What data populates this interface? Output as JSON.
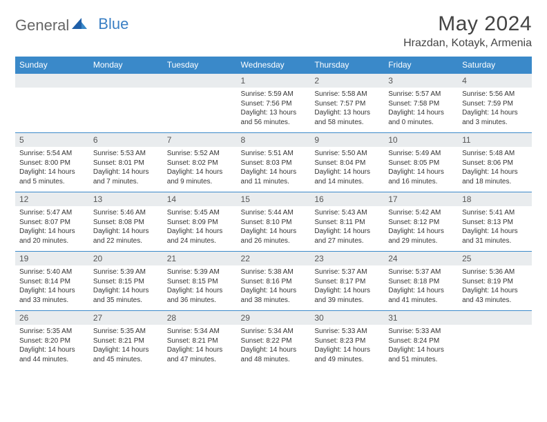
{
  "logo": {
    "text1": "General",
    "text2": "Blue"
  },
  "title": "May 2024",
  "location": "Hrazdan, Kotayk, Armenia",
  "colors": {
    "header_bg": "#3a89c9",
    "header_text": "#ffffff",
    "daynum_bg": "#e9ecee",
    "rule": "#3a89c9",
    "logo_blue": "#3a7fc4"
  },
  "day_headers": [
    "Sunday",
    "Monday",
    "Tuesday",
    "Wednesday",
    "Thursday",
    "Friday",
    "Saturday"
  ],
  "weeks": [
    [
      {
        "empty": true
      },
      {
        "empty": true
      },
      {
        "empty": true
      },
      {
        "n": "1",
        "sr": "5:59 AM",
        "ss": "7:56 PM",
        "dl": "13 hours and 56 minutes."
      },
      {
        "n": "2",
        "sr": "5:58 AM",
        "ss": "7:57 PM",
        "dl": "13 hours and 58 minutes."
      },
      {
        "n": "3",
        "sr": "5:57 AM",
        "ss": "7:58 PM",
        "dl": "14 hours and 0 minutes."
      },
      {
        "n": "4",
        "sr": "5:56 AM",
        "ss": "7:59 PM",
        "dl": "14 hours and 3 minutes."
      }
    ],
    [
      {
        "n": "5",
        "sr": "5:54 AM",
        "ss": "8:00 PM",
        "dl": "14 hours and 5 minutes."
      },
      {
        "n": "6",
        "sr": "5:53 AM",
        "ss": "8:01 PM",
        "dl": "14 hours and 7 minutes."
      },
      {
        "n": "7",
        "sr": "5:52 AM",
        "ss": "8:02 PM",
        "dl": "14 hours and 9 minutes."
      },
      {
        "n": "8",
        "sr": "5:51 AM",
        "ss": "8:03 PM",
        "dl": "14 hours and 11 minutes."
      },
      {
        "n": "9",
        "sr": "5:50 AM",
        "ss": "8:04 PM",
        "dl": "14 hours and 14 minutes."
      },
      {
        "n": "10",
        "sr": "5:49 AM",
        "ss": "8:05 PM",
        "dl": "14 hours and 16 minutes."
      },
      {
        "n": "11",
        "sr": "5:48 AM",
        "ss": "8:06 PM",
        "dl": "14 hours and 18 minutes."
      }
    ],
    [
      {
        "n": "12",
        "sr": "5:47 AM",
        "ss": "8:07 PM",
        "dl": "14 hours and 20 minutes."
      },
      {
        "n": "13",
        "sr": "5:46 AM",
        "ss": "8:08 PM",
        "dl": "14 hours and 22 minutes."
      },
      {
        "n": "14",
        "sr": "5:45 AM",
        "ss": "8:09 PM",
        "dl": "14 hours and 24 minutes."
      },
      {
        "n": "15",
        "sr": "5:44 AM",
        "ss": "8:10 PM",
        "dl": "14 hours and 26 minutes."
      },
      {
        "n": "16",
        "sr": "5:43 AM",
        "ss": "8:11 PM",
        "dl": "14 hours and 27 minutes."
      },
      {
        "n": "17",
        "sr": "5:42 AM",
        "ss": "8:12 PM",
        "dl": "14 hours and 29 minutes."
      },
      {
        "n": "18",
        "sr": "5:41 AM",
        "ss": "8:13 PM",
        "dl": "14 hours and 31 minutes."
      }
    ],
    [
      {
        "n": "19",
        "sr": "5:40 AM",
        "ss": "8:14 PM",
        "dl": "14 hours and 33 minutes."
      },
      {
        "n": "20",
        "sr": "5:39 AM",
        "ss": "8:15 PM",
        "dl": "14 hours and 35 minutes."
      },
      {
        "n": "21",
        "sr": "5:39 AM",
        "ss": "8:15 PM",
        "dl": "14 hours and 36 minutes."
      },
      {
        "n": "22",
        "sr": "5:38 AM",
        "ss": "8:16 PM",
        "dl": "14 hours and 38 minutes."
      },
      {
        "n": "23",
        "sr": "5:37 AM",
        "ss": "8:17 PM",
        "dl": "14 hours and 39 minutes."
      },
      {
        "n": "24",
        "sr": "5:37 AM",
        "ss": "8:18 PM",
        "dl": "14 hours and 41 minutes."
      },
      {
        "n": "25",
        "sr": "5:36 AM",
        "ss": "8:19 PM",
        "dl": "14 hours and 43 minutes."
      }
    ],
    [
      {
        "n": "26",
        "sr": "5:35 AM",
        "ss": "8:20 PM",
        "dl": "14 hours and 44 minutes."
      },
      {
        "n": "27",
        "sr": "5:35 AM",
        "ss": "8:21 PM",
        "dl": "14 hours and 45 minutes."
      },
      {
        "n": "28",
        "sr": "5:34 AM",
        "ss": "8:21 PM",
        "dl": "14 hours and 47 minutes."
      },
      {
        "n": "29",
        "sr": "5:34 AM",
        "ss": "8:22 PM",
        "dl": "14 hours and 48 minutes."
      },
      {
        "n": "30",
        "sr": "5:33 AM",
        "ss": "8:23 PM",
        "dl": "14 hours and 49 minutes."
      },
      {
        "n": "31",
        "sr": "5:33 AM",
        "ss": "8:24 PM",
        "dl": "14 hours and 51 minutes."
      },
      {
        "empty": true
      }
    ]
  ],
  "labels": {
    "sunrise": "Sunrise:",
    "sunset": "Sunset:",
    "daylight": "Daylight:"
  }
}
